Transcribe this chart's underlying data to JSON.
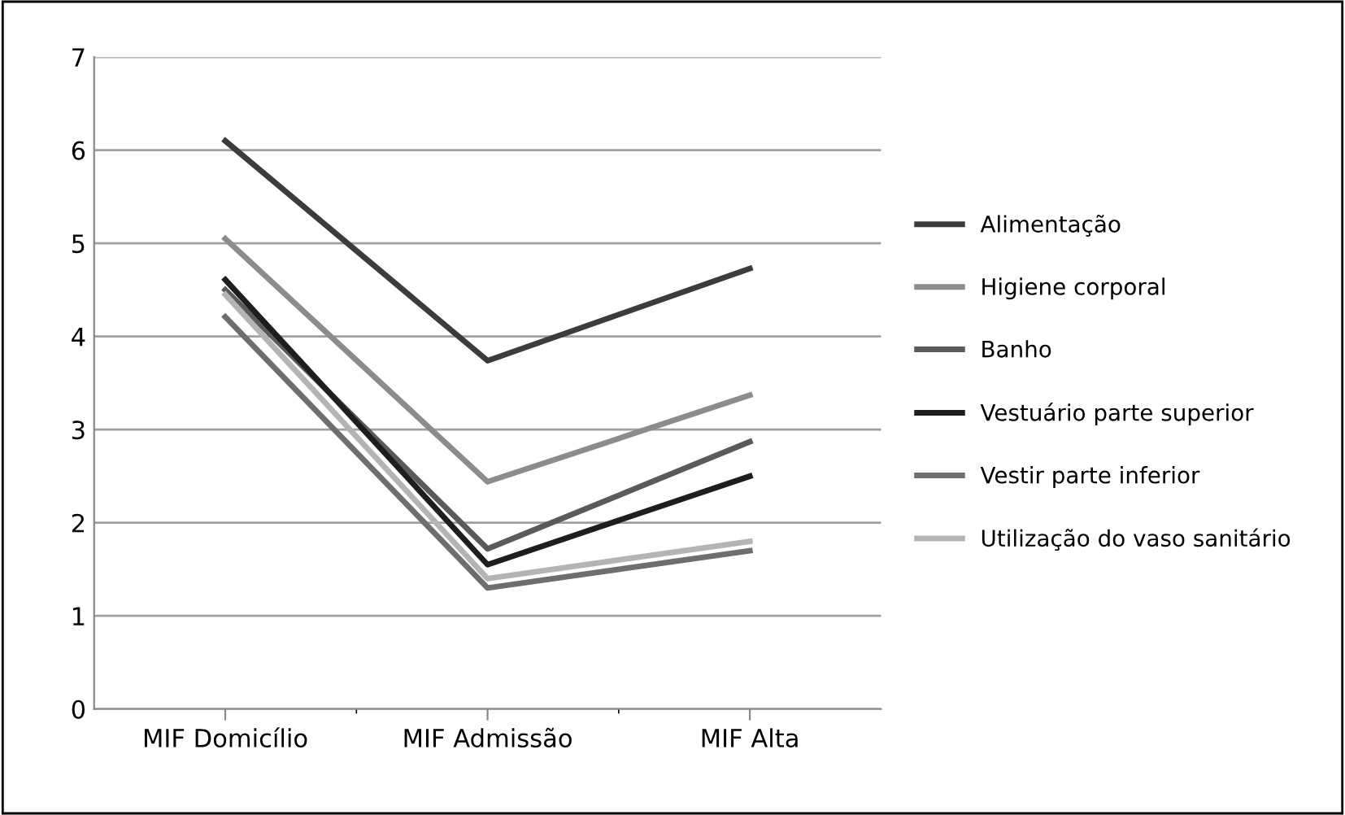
{
  "chart_data": {
    "type": "line",
    "categories": [
      "MIF Domicílio",
      "MIF Admissão",
      "MIF Alta"
    ],
    "ylim": [
      0,
      7
    ],
    "yticks": [
      0,
      1,
      2,
      3,
      4,
      5,
      6,
      7
    ],
    "grid": "y",
    "legend": "right",
    "marker": "none",
    "series": [
      {
        "name": "Alimentação",
        "color": "#3c3c3c",
        "values": [
          6.1,
          3.74,
          4.73
        ]
      },
      {
        "name": "Higiene corporal",
        "color": "#8c8c8c",
        "values": [
          5.05,
          2.44,
          3.37
        ]
      },
      {
        "name": "Banho",
        "color": "#5a5a5a",
        "values": [
          4.5,
          1.72,
          2.87
        ]
      },
      {
        "name": "Vestuário parte superior",
        "color": "#1e1e1e",
        "values": [
          4.61,
          1.55,
          2.5
        ]
      },
      {
        "name": "Vestir parte inferior",
        "color": "#6e6e6e",
        "values": [
          4.21,
          1.3,
          1.7
        ]
      },
      {
        "name": "Utilização do vaso sanitário",
        "color": "#b4b4b4",
        "values": [
          4.45,
          1.4,
          1.8
        ]
      }
    ]
  }
}
